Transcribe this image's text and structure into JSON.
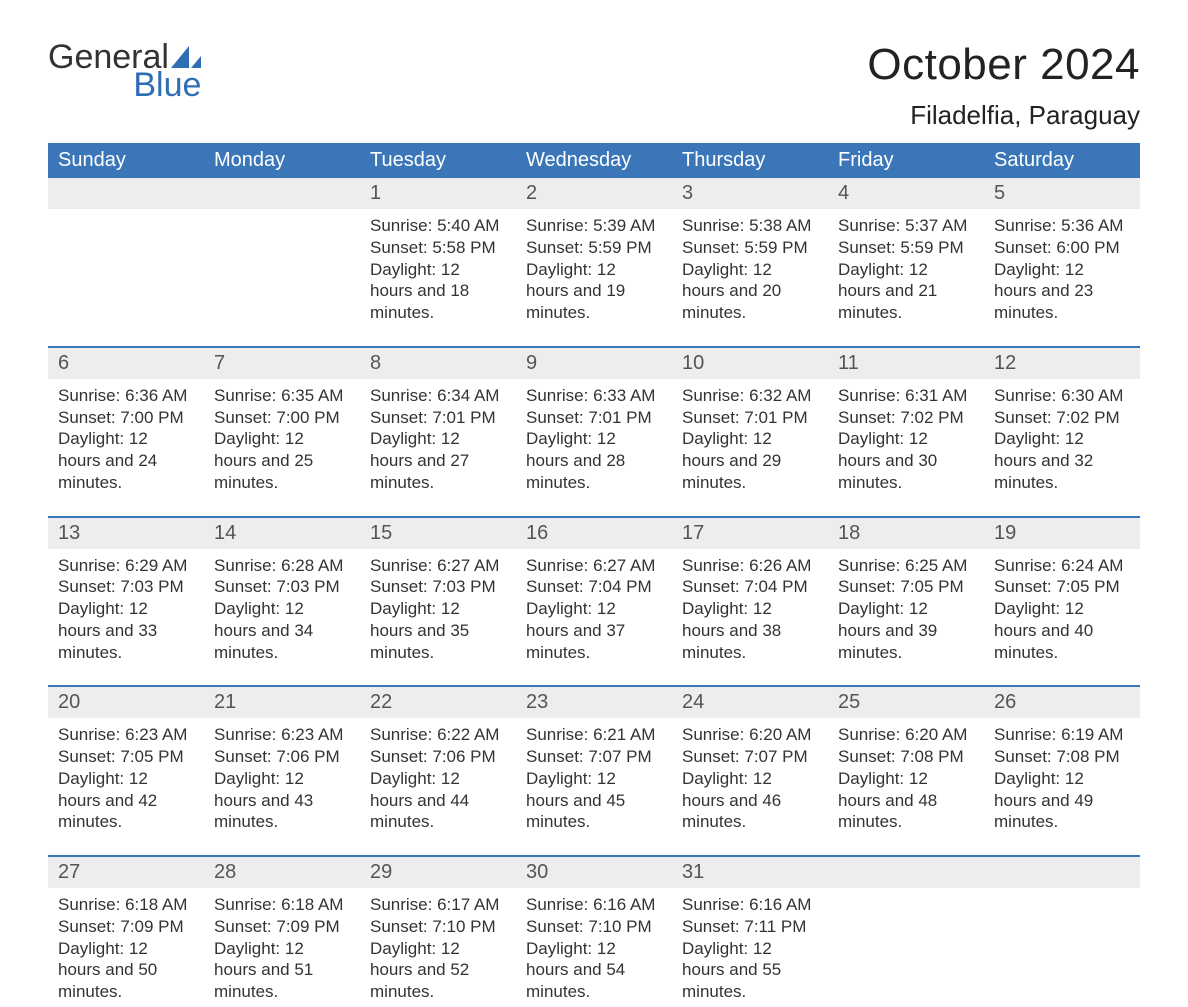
{
  "colors": {
    "header_bg": "#3a76b8",
    "header_text": "#ffffff",
    "daynum_bg": "#ededed",
    "row_divider": "#3a76b8",
    "text": "#333333",
    "logo_accent": "#2f6eb5",
    "background": "#ffffff"
  },
  "typography": {
    "month_title_fontsize": 44,
    "location_fontsize": 26,
    "weekday_fontsize": 20,
    "daynum_fontsize": 20,
    "cell_fontsize": 17,
    "font_family": "Arial"
  },
  "logo": {
    "word1": "General",
    "word2": "Blue"
  },
  "title": "October 2024",
  "location": "Filadelfia, Paraguay",
  "weekdays": [
    "Sunday",
    "Monday",
    "Tuesday",
    "Wednesday",
    "Thursday",
    "Friday",
    "Saturday"
  ],
  "labels": {
    "sunrise": "Sunrise",
    "sunset": "Sunset",
    "daylight": "Daylight"
  },
  "weeks": [
    [
      null,
      null,
      {
        "n": "1",
        "sunrise": "5:40 AM",
        "sunset": "5:58 PM",
        "daylight": "12 hours and 18 minutes."
      },
      {
        "n": "2",
        "sunrise": "5:39 AM",
        "sunset": "5:59 PM",
        "daylight": "12 hours and 19 minutes."
      },
      {
        "n": "3",
        "sunrise": "5:38 AM",
        "sunset": "5:59 PM",
        "daylight": "12 hours and 20 minutes."
      },
      {
        "n": "4",
        "sunrise": "5:37 AM",
        "sunset": "5:59 PM",
        "daylight": "12 hours and 21 minutes."
      },
      {
        "n": "5",
        "sunrise": "5:36 AM",
        "sunset": "6:00 PM",
        "daylight": "12 hours and 23 minutes."
      }
    ],
    [
      {
        "n": "6",
        "sunrise": "6:36 AM",
        "sunset": "7:00 PM",
        "daylight": "12 hours and 24 minutes."
      },
      {
        "n": "7",
        "sunrise": "6:35 AM",
        "sunset": "7:00 PM",
        "daylight": "12 hours and 25 minutes."
      },
      {
        "n": "8",
        "sunrise": "6:34 AM",
        "sunset": "7:01 PM",
        "daylight": "12 hours and 27 minutes."
      },
      {
        "n": "9",
        "sunrise": "6:33 AM",
        "sunset": "7:01 PM",
        "daylight": "12 hours and 28 minutes."
      },
      {
        "n": "10",
        "sunrise": "6:32 AM",
        "sunset": "7:01 PM",
        "daylight": "12 hours and 29 minutes."
      },
      {
        "n": "11",
        "sunrise": "6:31 AM",
        "sunset": "7:02 PM",
        "daylight": "12 hours and 30 minutes."
      },
      {
        "n": "12",
        "sunrise": "6:30 AM",
        "sunset": "7:02 PM",
        "daylight": "12 hours and 32 minutes."
      }
    ],
    [
      {
        "n": "13",
        "sunrise": "6:29 AM",
        "sunset": "7:03 PM",
        "daylight": "12 hours and 33 minutes."
      },
      {
        "n": "14",
        "sunrise": "6:28 AM",
        "sunset": "7:03 PM",
        "daylight": "12 hours and 34 minutes."
      },
      {
        "n": "15",
        "sunrise": "6:27 AM",
        "sunset": "7:03 PM",
        "daylight": "12 hours and 35 minutes."
      },
      {
        "n": "16",
        "sunrise": "6:27 AM",
        "sunset": "7:04 PM",
        "daylight": "12 hours and 37 minutes."
      },
      {
        "n": "17",
        "sunrise": "6:26 AM",
        "sunset": "7:04 PM",
        "daylight": "12 hours and 38 minutes."
      },
      {
        "n": "18",
        "sunrise": "6:25 AM",
        "sunset": "7:05 PM",
        "daylight": "12 hours and 39 minutes."
      },
      {
        "n": "19",
        "sunrise": "6:24 AM",
        "sunset": "7:05 PM",
        "daylight": "12 hours and 40 minutes."
      }
    ],
    [
      {
        "n": "20",
        "sunrise": "6:23 AM",
        "sunset": "7:05 PM",
        "daylight": "12 hours and 42 minutes."
      },
      {
        "n": "21",
        "sunrise": "6:23 AM",
        "sunset": "7:06 PM",
        "daylight": "12 hours and 43 minutes."
      },
      {
        "n": "22",
        "sunrise": "6:22 AM",
        "sunset": "7:06 PM",
        "daylight": "12 hours and 44 minutes."
      },
      {
        "n": "23",
        "sunrise": "6:21 AM",
        "sunset": "7:07 PM",
        "daylight": "12 hours and 45 minutes."
      },
      {
        "n": "24",
        "sunrise": "6:20 AM",
        "sunset": "7:07 PM",
        "daylight": "12 hours and 46 minutes."
      },
      {
        "n": "25",
        "sunrise": "6:20 AM",
        "sunset": "7:08 PM",
        "daylight": "12 hours and 48 minutes."
      },
      {
        "n": "26",
        "sunrise": "6:19 AM",
        "sunset": "7:08 PM",
        "daylight": "12 hours and 49 minutes."
      }
    ],
    [
      {
        "n": "27",
        "sunrise": "6:18 AM",
        "sunset": "7:09 PM",
        "daylight": "12 hours and 50 minutes."
      },
      {
        "n": "28",
        "sunrise": "6:18 AM",
        "sunset": "7:09 PM",
        "daylight": "12 hours and 51 minutes."
      },
      {
        "n": "29",
        "sunrise": "6:17 AM",
        "sunset": "7:10 PM",
        "daylight": "12 hours and 52 minutes."
      },
      {
        "n": "30",
        "sunrise": "6:16 AM",
        "sunset": "7:10 PM",
        "daylight": "12 hours and 54 minutes."
      },
      {
        "n": "31",
        "sunrise": "6:16 AM",
        "sunset": "7:11 PM",
        "daylight": "12 hours and 55 minutes."
      },
      null,
      null
    ]
  ]
}
